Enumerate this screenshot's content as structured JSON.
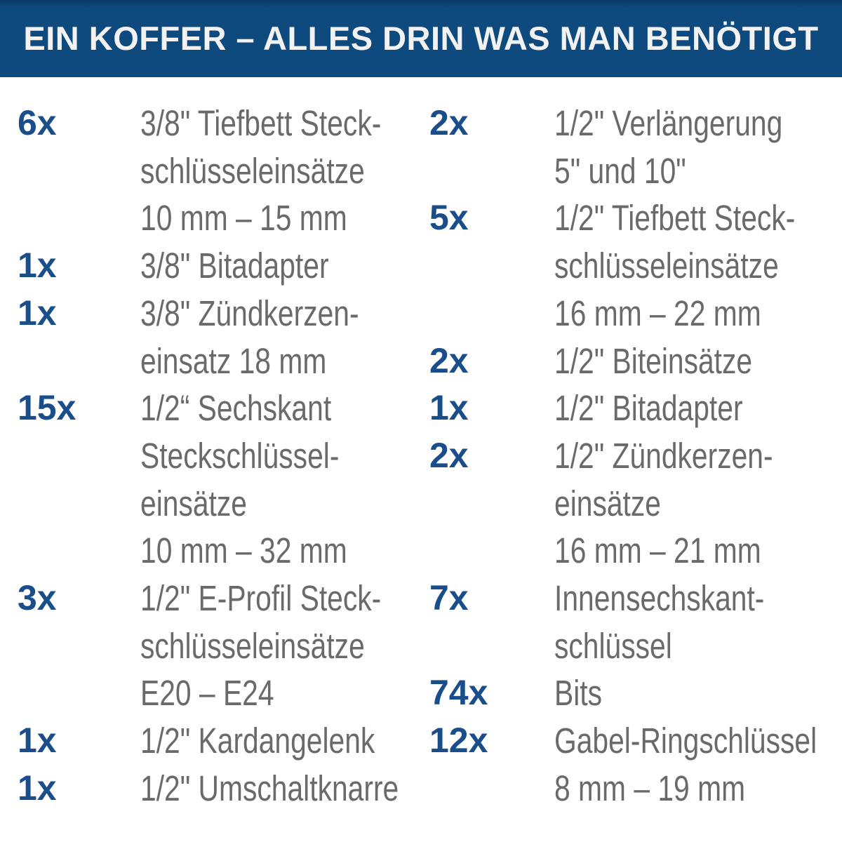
{
  "header": {
    "title": "EIN KOFFER – ALLES DRIN WAS MAN BENÖTIGT"
  },
  "colors": {
    "header_bg": "#0f4a7e",
    "header_text": "#f2f2f2",
    "qty": "#1a4e8a",
    "desc": "#6a6a6a"
  },
  "columns": {
    "left": {
      "items": [
        {
          "qty": "6x",
          "lines": [
            "3/8\" Tiefbett Steck-",
            "schlüsseleinsätze",
            "10 mm – 15 mm"
          ]
        },
        {
          "qty": "1x",
          "lines": [
            "3/8\" Bitadapter"
          ]
        },
        {
          "qty": "1x",
          "lines": [
            "3/8\" Zündkerzen-",
            "einsatz 18 mm"
          ]
        },
        {
          "qty": "15x",
          "lines": [
            "1/2“ Sechskant",
            "Steckschlüssel-",
            "einsätze",
            "10 mm – 32 mm"
          ]
        },
        {
          "qty": "3x",
          "lines": [
            "1/2\" E-Profil Steck-",
            "schlüsseleinsätze",
            "E20 – E24"
          ]
        },
        {
          "qty": "1x",
          "lines": [
            "1/2\" Kardangelenk"
          ]
        },
        {
          "qty": "1x",
          "lines": [
            "1/2\" Umschaltknarre"
          ]
        }
      ]
    },
    "right": {
      "items": [
        {
          "qty": "2x",
          "lines": [
            "1/2\" Verlängerung",
            "5\" und 10\""
          ]
        },
        {
          "qty": "5x",
          "lines": [
            "1/2\" Tiefbett Steck-",
            "schlüsseleinsätze",
            "16 mm – 22 mm"
          ]
        },
        {
          "qty": "2x",
          "lines": [
            "1/2\" Biteinsätze"
          ]
        },
        {
          "qty": "1x",
          "lines": [
            "1/2\" Bitadapter"
          ]
        },
        {
          "qty": "2x",
          "lines": [
            "1/2\" Zündkerzen-",
            "einsätze",
            "16 mm – 21 mm"
          ]
        },
        {
          "qty": "7x",
          "lines": [
            "Innensechskant-",
            "schlüssel"
          ]
        },
        {
          "qty": "74x",
          "lines": [
            "Bits"
          ]
        },
        {
          "qty": "12x",
          "lines": [
            "Gabel-Ringschlüssel",
            "8 mm – 19 mm"
          ]
        }
      ]
    }
  }
}
